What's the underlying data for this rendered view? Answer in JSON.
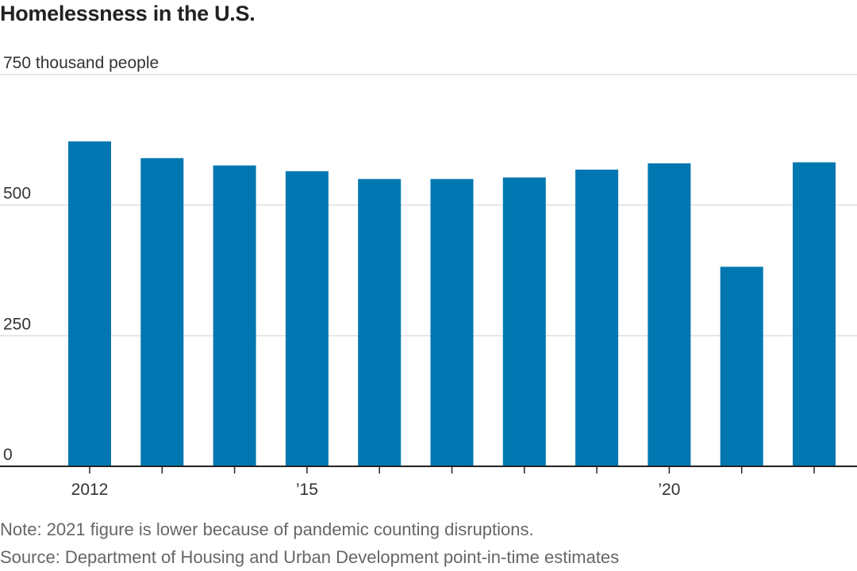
{
  "title": "Homelessness in the U.S.",
  "note": "Note: 2021 figure is lower because of pandemic counting disruptions.",
  "source": "Source: Department of Housing and Urban Development point-in-time estimates",
  "colors": {
    "bar": "#0077b0",
    "grid": "#dddddd",
    "axis": "#222222"
  },
  "chart_data": {
    "type": "bar",
    "title": "Homelessness in the U.S.",
    "ylabel": "",
    "xlabel": "",
    "categories": [
      "2012",
      "2013",
      "2014",
      "2015",
      "2016",
      "2017",
      "2018",
      "2019",
      "2020",
      "2021",
      "2022"
    ],
    "values": [
      622,
      590,
      576,
      565,
      550,
      550,
      553,
      568,
      580,
      382,
      582
    ],
    "ylim": [
      0,
      750
    ],
    "yticks": [
      {
        "value": 0,
        "label": "0"
      },
      {
        "value": 250,
        "label": "250"
      },
      {
        "value": 500,
        "label": "500"
      },
      {
        "value": 750,
        "label": "750 thousand people"
      }
    ],
    "xtick_labels": [
      {
        "index": 0,
        "label": "2012"
      },
      {
        "index": 3,
        "label": "’15"
      },
      {
        "index": 8,
        "label": "’20"
      }
    ],
    "grid": true,
    "legend": "none"
  }
}
